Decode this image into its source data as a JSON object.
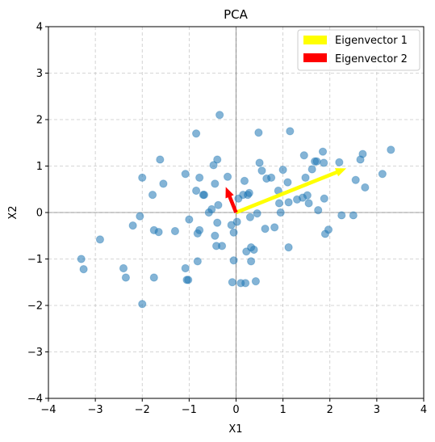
{
  "chart_data": {
    "type": "scatter",
    "title": "PCA",
    "xlabel": "X1",
    "ylabel": "X2",
    "xlim": [
      -4,
      4
    ],
    "ylim": [
      -4,
      4
    ],
    "xticks": [
      -4,
      -3,
      -2,
      -1,
      0,
      1,
      2,
      3,
      4
    ],
    "yticks": [
      -4,
      -3,
      -2,
      -1,
      0,
      1,
      2,
      3,
      4
    ],
    "xtick_labels": [
      "−4",
      "−3",
      "−2",
      "−1",
      "0",
      "1",
      "2",
      "3",
      "4"
    ],
    "ytick_labels": [
      "−4",
      "−3",
      "−2",
      "−1",
      "0",
      "1",
      "2",
      "3",
      "4"
    ],
    "grid": true,
    "origin_lines": true,
    "legend_position": "top-right",
    "point_color": "#1f77b4",
    "points": [
      [
        -3.3,
        -1.0
      ],
      [
        -3.25,
        -1.22
      ],
      [
        -2.9,
        -0.58
      ],
      [
        -2.4,
        -1.2
      ],
      [
        -2.35,
        -1.4
      ],
      [
        -2.2,
        -0.28
      ],
      [
        -2.05,
        -0.08
      ],
      [
        -2.0,
        0.75
      ],
      [
        -2.0,
        -1.97
      ],
      [
        -1.78,
        0.38
      ],
      [
        -1.75,
        -1.4
      ],
      [
        -1.75,
        -0.38
      ],
      [
        -1.65,
        -0.42
      ],
      [
        -1.62,
        1.14
      ],
      [
        -1.55,
        0.62
      ],
      [
        -1.3,
        -0.4
      ],
      [
        -1.08,
        0.83
      ],
      [
        -1.08,
        -1.2
      ],
      [
        -1.05,
        -1.45
      ],
      [
        -1.02,
        -1.45
      ],
      [
        -1.0,
        -0.15
      ],
      [
        -0.85,
        0.47
      ],
      [
        -0.85,
        1.7
      ],
      [
        -0.82,
        -1.05
      ],
      [
        -0.82,
        -0.45
      ],
      [
        -0.78,
        0.75
      ],
      [
        -0.78,
        -0.38
      ],
      [
        -0.7,
        0.38
      ],
      [
        -0.68,
        0.38
      ],
      [
        -0.58,
        0.0
      ],
      [
        -0.52,
        0.07
      ],
      [
        -0.48,
        1.02
      ],
      [
        -0.45,
        0.62
      ],
      [
        -0.45,
        -0.5
      ],
      [
        -0.42,
        -0.72
      ],
      [
        -0.4,
        1.14
      ],
      [
        -0.4,
        -0.22
      ],
      [
        -0.38,
        0.16
      ],
      [
        -0.35,
        2.1
      ],
      [
        -0.3,
        -0.72
      ],
      [
        -0.18,
        0.77
      ],
      [
        -0.1,
        -0.27
      ],
      [
        -0.08,
        -1.5
      ],
      [
        -0.05,
        -0.43
      ],
      [
        -0.05,
        -1.03
      ],
      [
        0.02,
        -0.2
      ],
      [
        0.05,
        0.3
      ],
      [
        0.1,
        -1.52
      ],
      [
        0.15,
        0.38
      ],
      [
        0.18,
        0.68
      ],
      [
        0.2,
        -1.52
      ],
      [
        0.22,
        -0.84
      ],
      [
        0.25,
        0.38
      ],
      [
        0.28,
        0.42
      ],
      [
        0.3,
        -0.1
      ],
      [
        0.32,
        -0.75
      ],
      [
        0.32,
        -1.05
      ],
      [
        0.38,
        -0.8
      ],
      [
        0.42,
        -1.48
      ],
      [
        0.45,
        -0.02
      ],
      [
        0.48,
        1.72
      ],
      [
        0.5,
        1.07
      ],
      [
        0.55,
        0.9
      ],
      [
        0.62,
        -0.35
      ],
      [
        0.65,
        0.73
      ],
      [
        0.75,
        0.75
      ],
      [
        0.82,
        -0.32
      ],
      [
        0.9,
        0.47
      ],
      [
        0.92,
        0.2
      ],
      [
        0.95,
        0.0
      ],
      [
        1.0,
        0.92
      ],
      [
        1.1,
        0.65
      ],
      [
        1.12,
        0.22
      ],
      [
        1.12,
        -0.75
      ],
      [
        1.15,
        1.75
      ],
      [
        1.3,
        0.28
      ],
      [
        1.42,
        0.32
      ],
      [
        1.45,
        1.23
      ],
      [
        1.48,
        0.75
      ],
      [
        1.52,
        0.37
      ],
      [
        1.55,
        0.2
      ],
      [
        1.62,
        0.93
      ],
      [
        1.68,
        1.1
      ],
      [
        1.72,
        1.1
      ],
      [
        1.75,
        0.05
      ],
      [
        1.85,
        1.31
      ],
      [
        1.87,
        1.07
      ],
      [
        1.88,
        0.3
      ],
      [
        1.9,
        -0.46
      ],
      [
        1.97,
        -0.37
      ],
      [
        2.2,
        1.08
      ],
      [
        2.25,
        -0.06
      ],
      [
        2.5,
        -0.06
      ],
      [
        2.55,
        0.7
      ],
      [
        2.65,
        1.14
      ],
      [
        2.7,
        1.26
      ],
      [
        2.75,
        0.54
      ],
      [
        3.12,
        0.83
      ],
      [
        3.3,
        1.35
      ]
    ],
    "vectors": [
      {
        "name": "Eigenvector 1",
        "color": "#ffff00",
        "from": [
          0,
          0
        ],
        "to": [
          2.35,
          0.95
        ]
      },
      {
        "name": "Eigenvector 2",
        "color": "#ff0000",
        "from": [
          0,
          0
        ],
        "to": [
          -0.22,
          0.55
        ]
      }
    ]
  }
}
